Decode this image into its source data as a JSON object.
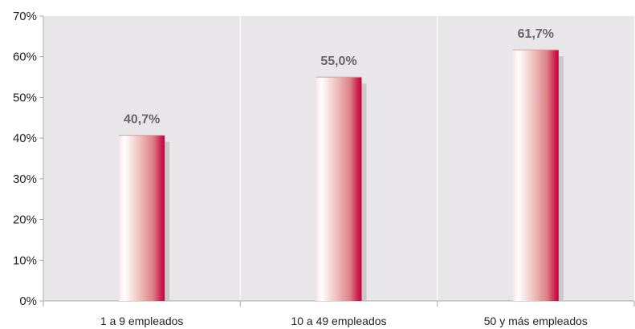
{
  "chart_data": {
    "type": "bar",
    "categories": [
      "1 a 9 empleados",
      "10 a 49 empleados",
      "50 y más empleados"
    ],
    "values": [
      40.7,
      55.0,
      61.7
    ],
    "data_labels": [
      "40,7%",
      "55,0%",
      "61,7%"
    ],
    "title": "",
    "xlabel": "",
    "ylabel": "",
    "ylim": [
      0,
      70
    ],
    "yticks": [
      0,
      10,
      20,
      30,
      40,
      50,
      60,
      70
    ],
    "ytick_labels": [
      "0%",
      "10%",
      "20%",
      "30%",
      "40%",
      "50%",
      "60%",
      "70%"
    ],
    "grid": "vertical separators between categories",
    "legend": "none"
  },
  "colors": {
    "plot_background": "#e8e6e9",
    "bar_light": "#ffffff",
    "bar_mid": "#e89a9e",
    "bar_dark": "#c8003a",
    "bar_shadow": "#c9c7ca",
    "gridline": "#ffffff",
    "axis": "#aaaaaa",
    "data_label": "#666666",
    "tick_text": "#222222"
  }
}
